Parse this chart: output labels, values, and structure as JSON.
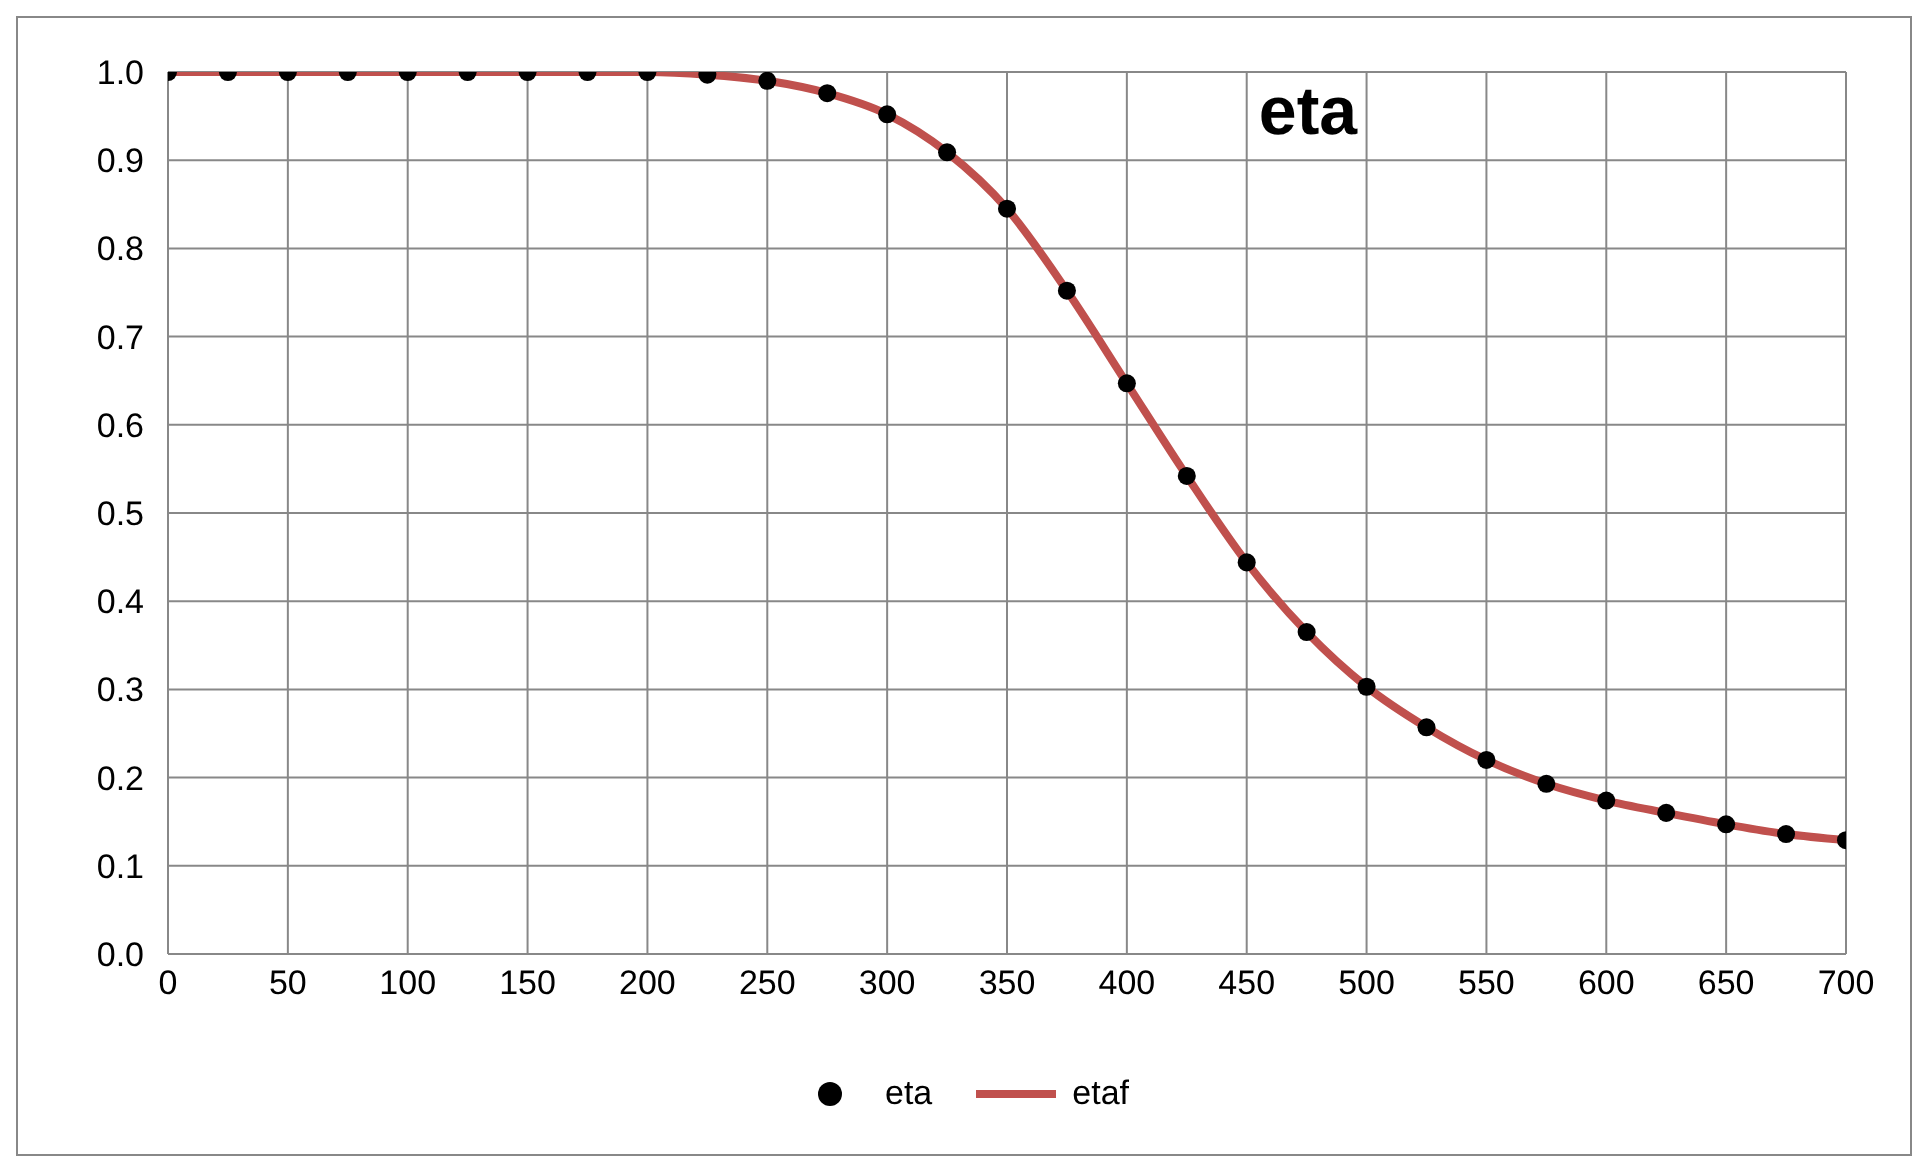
{
  "chart_data": {
    "type": "scatter",
    "title": "eta",
    "x": [
      0,
      25,
      50,
      75,
      100,
      125,
      150,
      175,
      200,
      225,
      250,
      275,
      300,
      325,
      350,
      375,
      400,
      425,
      450,
      475,
      500,
      525,
      550,
      575,
      600,
      625,
      650,
      675,
      700
    ],
    "series": [
      {
        "name": "eta",
        "color": "#000000",
        "marker": "circle",
        "values": [
          1.0,
          1.0,
          1.0,
          1.0,
          1.0,
          1.0,
          1.0,
          1.0,
          1.0,
          0.997,
          0.99,
          0.976,
          0.952,
          0.909,
          0.845,
          0.752,
          0.647,
          0.542,
          0.444,
          0.365,
          0.303,
          0.257,
          0.22,
          0.193,
          0.174,
          0.16,
          0.147,
          0.136,
          0.129
        ]
      },
      {
        "name": "etaf",
        "type": "line",
        "color": "#c0504d",
        "marker": "none",
        "line_style": "solid",
        "values": [
          1.0,
          1.0,
          1.0,
          1.0,
          1.0,
          1.0,
          1.0,
          1.0,
          1.0,
          0.997,
          0.99,
          0.976,
          0.952,
          0.909,
          0.845,
          0.752,
          0.647,
          0.542,
          0.444,
          0.365,
          0.303,
          0.257,
          0.22,
          0.193,
          0.174,
          0.16,
          0.147,
          0.136,
          0.129
        ]
      }
    ],
    "xlim": [
      0,
      700
    ],
    "xticks": [
      0,
      50,
      100,
      150,
      200,
      250,
      300,
      350,
      400,
      450,
      500,
      550,
      600,
      650,
      700
    ],
    "ylim": [
      0,
      1
    ],
    "yticks": [
      {
        "value": 0,
        "label": "0.0"
      },
      0.1,
      0.2,
      0.3,
      0.4,
      0.5,
      0.6,
      0.7,
      0.8,
      0.9,
      {
        "value": 1,
        "label": "1.0"
      }
    ],
    "grid": true,
    "legend": "bottom"
  }
}
